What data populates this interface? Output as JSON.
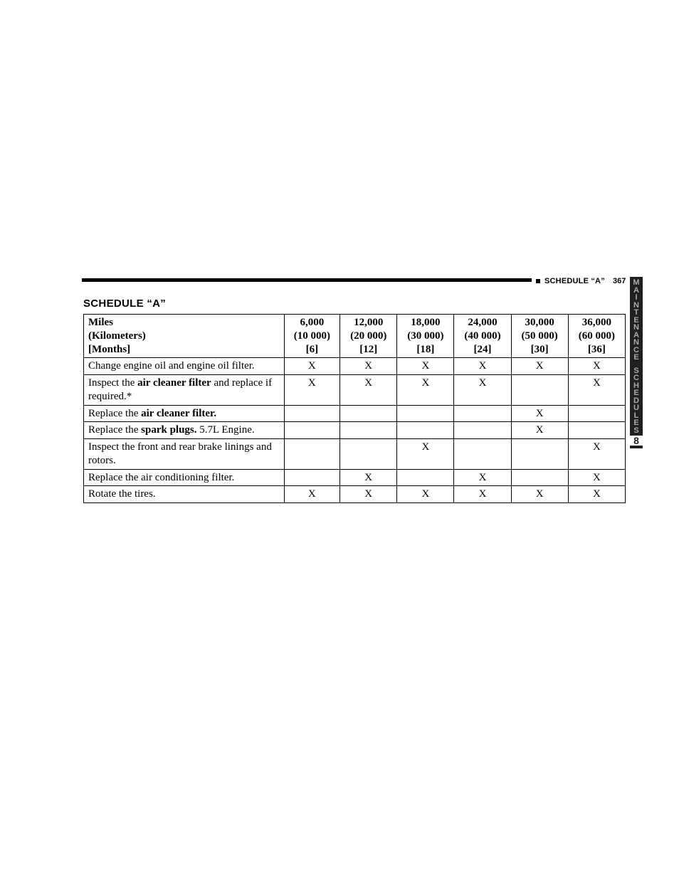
{
  "header": {
    "running_head": "SCHEDULE “A”",
    "page_number": "367"
  },
  "section_title": "SCHEDULE “A”",
  "tab": {
    "word1": "MAINTENANCE",
    "word2": "SCHEDULES",
    "section_number": "8"
  },
  "table": {
    "header": {
      "desc_label_miles": "Miles",
      "desc_label_km": "(Kilometers)",
      "desc_label_months": "[Months]",
      "columns": [
        {
          "miles": "6,000",
          "km": "(10 000)",
          "months": "[6]"
        },
        {
          "miles": "12,000",
          "km": "(20 000)",
          "months": "[12]"
        },
        {
          "miles": "18,000",
          "km": "(30 000)",
          "months": "[18]"
        },
        {
          "miles": "24,000",
          "km": "(40 000)",
          "months": "[24]"
        },
        {
          "miles": "30,000",
          "km": "(50 000)",
          "months": "[30]"
        },
        {
          "miles": "36,000",
          "km": "(60 000)",
          "months": "[36]"
        }
      ]
    },
    "rows": [
      {
        "desc_pre": "Change engine oil and engine oil filter.",
        "desc_bold": "",
        "desc_post": "",
        "marks": [
          "X",
          "X",
          "X",
          "X",
          "X",
          "X"
        ]
      },
      {
        "desc_pre": "Inspect the ",
        "desc_bold": "air cleaner filter",
        "desc_post": " and replace if required.*",
        "marks": [
          "X",
          "X",
          "X",
          "X",
          "",
          "X"
        ]
      },
      {
        "desc_pre": "Replace the ",
        "desc_bold": "air cleaner filter.",
        "desc_post": "",
        "marks": [
          "",
          "",
          "",
          "",
          "X",
          ""
        ]
      },
      {
        "desc_pre": "Replace the ",
        "desc_bold": "spark plugs.",
        "desc_post": " 5.7L Engine.",
        "marks": [
          "",
          "",
          "",
          "",
          "X",
          ""
        ]
      },
      {
        "desc_pre": "Inspect the front and rear brake linings and rotors.",
        "desc_bold": "",
        "desc_post": "",
        "marks": [
          "",
          "",
          "X",
          "",
          "",
          "X"
        ]
      },
      {
        "desc_pre": "Replace the air conditioning filter.",
        "desc_bold": "",
        "desc_post": "",
        "marks": [
          "",
          "X",
          "",
          "X",
          "",
          "X"
        ]
      },
      {
        "desc_pre": "Rotate the tires.",
        "desc_bold": "",
        "desc_post": "",
        "marks": [
          "X",
          "X",
          "X",
          "X",
          "X",
          "X"
        ]
      }
    ]
  }
}
